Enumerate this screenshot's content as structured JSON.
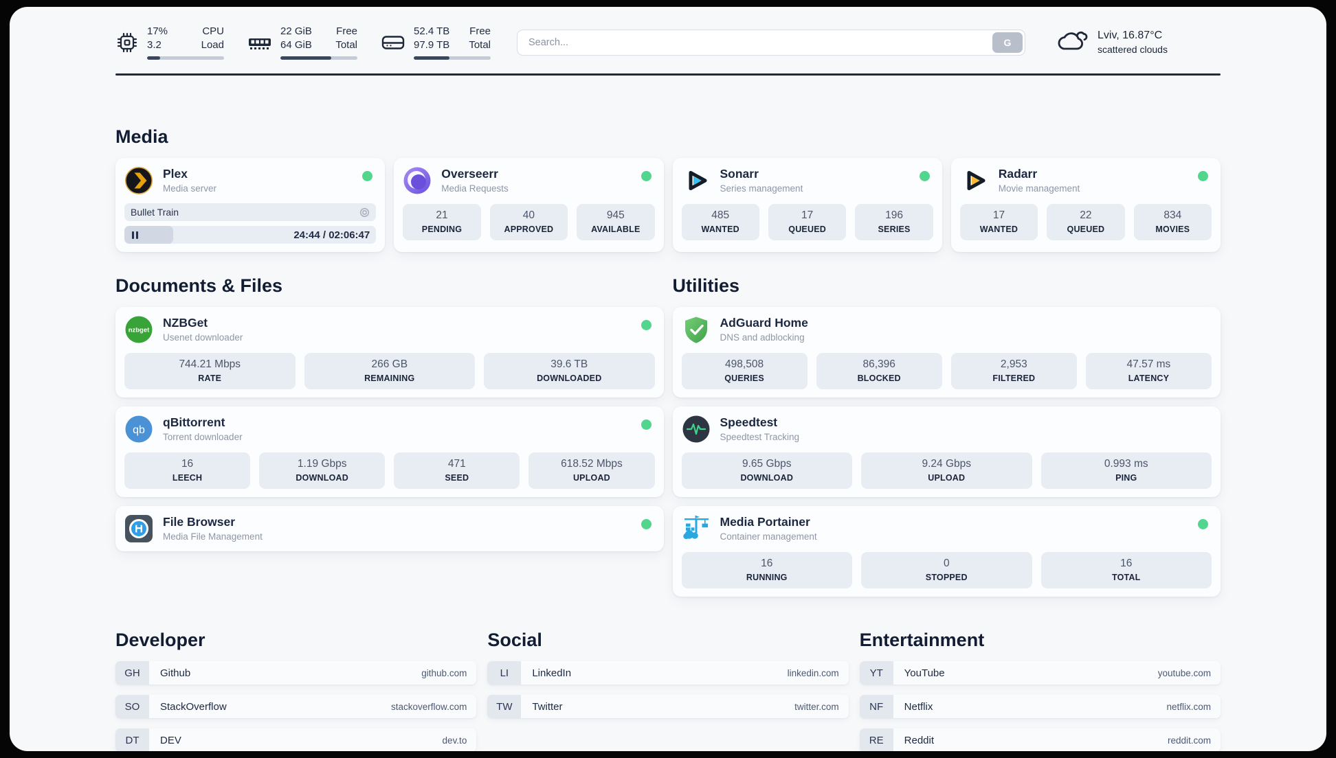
{
  "colors": {
    "status_online": "#52d68e",
    "accent_dark": "#202a3c",
    "page_bg": "#f6f8fa"
  },
  "topbar": {
    "cpu": {
      "value_top": "17%",
      "value_bottom": "3.2",
      "label_top": "CPU",
      "label_bottom": "Load",
      "bar_pct": 17
    },
    "memory": {
      "value_top": "22 GiB",
      "value_bottom": "64 GiB",
      "label_top": "Free",
      "label_bottom": "Total",
      "bar_pct": 66
    },
    "disk": {
      "value_top": "52.4 TB",
      "value_bottom": "97.9 TB",
      "label_top": "Free",
      "label_bottom": "Total",
      "bar_pct": 46
    },
    "search": {
      "placeholder": "Search...",
      "button_label": "G"
    },
    "weather": {
      "location": "Lviv, 16.87°C",
      "condition": "scattered clouds"
    }
  },
  "media": {
    "title": "Media",
    "plex": {
      "name": "Plex",
      "desc": "Media server",
      "now_playing": "Bullet Train",
      "time": "24:44 / 02:06:47",
      "progress_pct": 19.5
    },
    "overseerr": {
      "name": "Overseerr",
      "desc": "Media Requests",
      "stats": [
        {
          "value": "21",
          "label": "PENDING"
        },
        {
          "value": "40",
          "label": "APPROVED"
        },
        {
          "value": "945",
          "label": "AVAILABLE"
        }
      ]
    },
    "sonarr": {
      "name": "Sonarr",
      "desc": "Series management",
      "stats": [
        {
          "value": "485",
          "label": "WANTED"
        },
        {
          "value": "17",
          "label": "QUEUED"
        },
        {
          "value": "196",
          "label": "SERIES"
        }
      ]
    },
    "radarr": {
      "name": "Radarr",
      "desc": "Movie management",
      "stats": [
        {
          "value": "17",
          "label": "WANTED"
        },
        {
          "value": "22",
          "label": "QUEUED"
        },
        {
          "value": "834",
          "label": "MOVIES"
        }
      ]
    }
  },
  "documents": {
    "title": "Documents & Files",
    "nzbget": {
      "name": "NZBGet",
      "desc": "Usenet downloader",
      "stats": [
        {
          "value": "744.21 Mbps",
          "label": "RATE"
        },
        {
          "value": "266 GB",
          "label": "REMAINING"
        },
        {
          "value": "39.6 TB",
          "label": "DOWNLOADED"
        }
      ]
    },
    "qbittorrent": {
      "name": "qBittorrent",
      "desc": "Torrent downloader",
      "stats": [
        {
          "value": "16",
          "label": "LEECH"
        },
        {
          "value": "1.19 Gbps",
          "label": "DOWNLOAD"
        },
        {
          "value": "471",
          "label": "SEED"
        },
        {
          "value": "618.52 Mbps",
          "label": "UPLOAD"
        }
      ]
    },
    "filebrowser": {
      "name": "File Browser",
      "desc": "Media File Management"
    }
  },
  "utilities": {
    "title": "Utilities",
    "adguard": {
      "name": "AdGuard Home",
      "desc": "DNS and adblocking",
      "stats": [
        {
          "value": "498,508",
          "label": "QUERIES"
        },
        {
          "value": "86,396",
          "label": "BLOCKED"
        },
        {
          "value": "2,953",
          "label": "FILTERED"
        },
        {
          "value": "47.57 ms",
          "label": "LATENCY"
        }
      ]
    },
    "speedtest": {
      "name": "Speedtest",
      "desc": "Speedtest Tracking",
      "stats": [
        {
          "value": "9.65 Gbps",
          "label": "DOWNLOAD"
        },
        {
          "value": "9.24 Gbps",
          "label": "UPLOAD"
        },
        {
          "value": "0.993 ms",
          "label": "PING"
        }
      ]
    },
    "portainer": {
      "name": "Media Portainer",
      "desc": "Container management",
      "stats": [
        {
          "value": "16",
          "label": "RUNNING"
        },
        {
          "value": "0",
          "label": "STOPPED"
        },
        {
          "value": "16",
          "label": "TOTAL"
        }
      ]
    }
  },
  "bookmarks": {
    "developer": {
      "title": "Developer",
      "items": [
        {
          "abbr": "GH",
          "name": "Github",
          "url": "github.com"
        },
        {
          "abbr": "SO",
          "name": "StackOverflow",
          "url": "stackoverflow.com"
        },
        {
          "abbr": "DT",
          "name": "DEV",
          "url": "dev.to"
        }
      ]
    },
    "social": {
      "title": "Social",
      "items": [
        {
          "abbr": "LI",
          "name": "LinkedIn",
          "url": "linkedin.com"
        },
        {
          "abbr": "TW",
          "name": "Twitter",
          "url": "twitter.com"
        }
      ]
    },
    "entertainment": {
      "title": "Entertainment",
      "items": [
        {
          "abbr": "YT",
          "name": "YouTube",
          "url": "youtube.com"
        },
        {
          "abbr": "NF",
          "name": "Netflix",
          "url": "netflix.com"
        },
        {
          "abbr": "RE",
          "name": "Reddit",
          "url": "reddit.com"
        }
      ]
    }
  }
}
